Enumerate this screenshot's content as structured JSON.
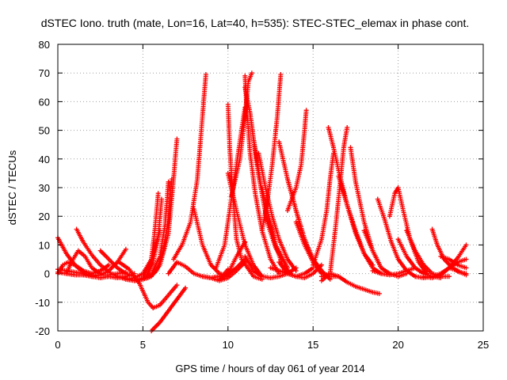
{
  "chart_data": {
    "type": "scatter",
    "title": "dSTEC Iono. truth (mate, Lon=16, Lat=40, h=535): STEC-STEC_elemax in phase cont.",
    "xlabel": "GPS time / hours of day 061 of year 2014",
    "ylabel": "dSTEC  / TECUs",
    "xlim": [
      0,
      25
    ],
    "ylim": [
      -20,
      80
    ],
    "xticks": [
      0,
      5,
      10,
      15,
      20,
      25
    ],
    "yticks": [
      -20,
      -10,
      0,
      10,
      20,
      30,
      40,
      50,
      60,
      70,
      80
    ],
    "x_tick_labels": [
      "0",
      "5",
      "10",
      "15",
      "20",
      "25"
    ],
    "y_tick_labels": [
      "-20",
      "-10",
      "0",
      "10",
      "20",
      "30",
      "40",
      "50",
      "60",
      "70",
      "80"
    ],
    "grid": true,
    "marker": "+",
    "color": "#ff0000",
    "series": [
      {
        "x": [
          0.0,
          0.5,
          1.0,
          1.5,
          2.0,
          2.5,
          3.0
        ],
        "y": [
          12.5,
          7,
          3,
          0.5,
          -1,
          -1.5,
          -1
        ]
      },
      {
        "x": [
          0.0,
          0.3,
          0.6,
          1.0,
          1.5,
          2.0
        ],
        "y": [
          0,
          3,
          4,
          3,
          1,
          0
        ]
      },
      {
        "x": [
          0.0,
          0.5,
          1.0,
          1.5,
          2.0,
          2.5,
          3.0
        ],
        "y": [
          0.5,
          0,
          -0.5,
          -0.5,
          0,
          1,
          3
        ]
      },
      {
        "x": [
          0.0,
          0.5,
          1.0,
          1.5,
          2.0,
          2.5,
          3.0,
          3.5,
          4.0
        ],
        "y": [
          1.5,
          1,
          0.5,
          0,
          -0.5,
          -0.5,
          -0.5,
          0,
          0.5
        ]
      },
      {
        "x": [
          0.5,
          0.8,
          1.2,
          1.6,
          2.0,
          2.5
        ],
        "y": [
          0,
          4,
          8,
          6,
          2,
          0
        ]
      },
      {
        "x": [
          1.1,
          1.5,
          2.0,
          2.5,
          3.0,
          3.5,
          4.0
        ],
        "y": [
          15.5,
          11,
          6.5,
          3,
          0.5,
          -1,
          -1.5
        ]
      },
      {
        "x": [
          1.5,
          2.0,
          2.5,
          3.0,
          3.5,
          4.0
        ],
        "y": [
          -0.5,
          -1,
          -0.5,
          1,
          4,
          8.5
        ]
      },
      {
        "x": [
          2.5,
          3.0,
          3.5,
          4.0,
          4.5
        ],
        "y": [
          8,
          5,
          2,
          0,
          -1
        ]
      },
      {
        "x": [
          3.0,
          3.5,
          4.0,
          4.5
        ],
        "y": [
          -1,
          -1.5,
          -1,
          0
        ]
      },
      {
        "x": [
          3.6,
          4.2,
          4.8,
          5.3,
          5.6
        ],
        "y": [
          4,
          1.5,
          -3.5,
          -10,
          -12
        ]
      },
      {
        "x": [
          3.5,
          4.0,
          4.5,
          5.0,
          5.5,
          6.0
        ],
        "y": [
          -1,
          -2,
          -1.5,
          0,
          5,
          15
        ]
      },
      {
        "x": [
          5.6,
          6.0,
          6.5,
          7.0
        ],
        "y": [
          -12,
          -11,
          -7.5,
          -4
        ]
      },
      {
        "x": [
          4.0,
          4.5,
          5.0,
          5.5,
          5.7,
          5.9
        ],
        "y": [
          -2,
          -2.5,
          -1.5,
          5,
          15,
          28
        ]
      },
      {
        "x": [
          4.2,
          4.7,
          5.2,
          5.6,
          5.9,
          6.1
        ],
        "y": [
          -2,
          -2.5,
          -1,
          4,
          13,
          26
        ]
      },
      {
        "x": [
          4.5,
          5.0,
          5.5,
          6.0,
          6.3,
          6.5
        ],
        "y": [
          -2.5,
          -2,
          0,
          6,
          17,
          32
        ]
      },
      {
        "x": [
          4.8,
          5.3,
          5.8,
          6.2,
          6.5,
          6.7
        ],
        "y": [
          -2,
          -1.5,
          1,
          8,
          19,
          33
        ]
      },
      {
        "x": [
          5.0,
          5.5,
          6.0,
          6.5,
          6.8,
          7.0
        ],
        "y": [
          -2,
          -1,
          3,
          14,
          33,
          47
        ]
      },
      {
        "x": [
          5.5,
          6.0,
          6.5,
          7.0,
          7.5
        ],
        "y": [
          -20,
          -17,
          -13,
          -9,
          -5
        ]
      },
      {
        "x": [
          6.5,
          7.0,
          7.5,
          8.0,
          8.5,
          9.0,
          9.5,
          10.0,
          10.5,
          11.0
        ],
        "y": [
          0,
          4,
          2.5,
          0,
          -1,
          -1.5,
          -1,
          0,
          2,
          5
        ]
      },
      {
        "x": [
          6.8,
          7.3,
          7.8,
          8.2,
          8.5,
          8.7
        ],
        "y": [
          5,
          10,
          18,
          33,
          55,
          69.5
        ]
      },
      {
        "x": [
          8.0,
          8.5,
          9.0,
          9.5,
          10.0
        ],
        "y": [
          22.5,
          10,
          3,
          0,
          -1
        ]
      },
      {
        "x": [
          8.5,
          9.0,
          9.5,
          9.8,
          10.0
        ],
        "y": [
          -1,
          -1.5,
          -1,
          0,
          1.5
        ]
      },
      {
        "x": [
          9.0,
          9.5,
          10.0,
          10.5,
          11.0
        ],
        "y": [
          -1.5,
          -2.5,
          -1.5,
          1,
          4
        ]
      },
      {
        "x": [
          9.3,
          9.8,
          10.2,
          10.6,
          11.0
        ],
        "y": [
          2,
          10,
          26,
          42,
          58
        ]
      },
      {
        "x": [
          9.5,
          10.0,
          10.5,
          11.0
        ],
        "y": [
          -2,
          0,
          6,
          11
        ]
      },
      {
        "x": [
          10.0,
          10.1,
          10.3,
          10.5,
          10.8,
          11.5,
          12.0
        ],
        "y": [
          59,
          44,
          26,
          12,
          5,
          -1,
          -2
        ]
      },
      {
        "x": [
          10.0,
          10.5,
          11.0,
          11.5,
          12.0
        ],
        "y": [
          35,
          22,
          10,
          3,
          -1
        ]
      },
      {
        "x": [
          10.2,
          10.7,
          11.0,
          11.2,
          11.4
        ],
        "y": [
          27,
          40,
          55,
          67,
          70
        ]
      },
      {
        "x": [
          11.0,
          11.1,
          11.3,
          11.6,
          12.0,
          12.5,
          13.0
        ],
        "y": [
          69,
          58,
          42,
          28,
          15,
          5,
          0
        ]
      },
      {
        "x": [
          11.0,
          11.3,
          11.5,
          11.8,
          12.2,
          12.8,
          13.5
        ],
        "y": [
          65,
          56,
          47,
          34,
          22,
          10,
          2
        ]
      },
      {
        "x": [
          11.5,
          11.8,
          12.0,
          12.3,
          12.8,
          13.5
        ],
        "y": [
          47,
          36,
          28,
          18,
          9,
          2
        ]
      },
      {
        "x": [
          11.0,
          11.5,
          12.0,
          12.5,
          13.0,
          13.5,
          14.0
        ],
        "y": [
          6,
          1,
          -1,
          -1.5,
          -1,
          0,
          2
        ]
      },
      {
        "x": [
          11.8,
          12.2,
          12.6,
          13.0,
          13.5,
          14.0
        ],
        "y": [
          42,
          30,
          20,
          12,
          5,
          1
        ]
      },
      {
        "x": [
          12.0,
          12.4,
          12.8,
          13.2,
          13.7
        ],
        "y": [
          30,
          20,
          10,
          3,
          0
        ]
      },
      {
        "x": [
          12.0,
          12.3,
          12.6,
          12.9,
          13.1
        ],
        "y": [
          15,
          25,
          38,
          55,
          69.5
        ]
      },
      {
        "x": [
          12.5,
          13.0,
          13.5,
          14.0,
          14.5,
          15.0
        ],
        "y": [
          2,
          1,
          0,
          -1,
          0,
          2
        ]
      },
      {
        "x": [
          13.0,
          13.5,
          14.0,
          14.5,
          15.0,
          15.5
        ],
        "y": [
          46,
          33,
          22,
          12,
          5,
          1
        ]
      },
      {
        "x": [
          13.5,
          14.0,
          14.5,
          15.0,
          15.5,
          16.0
        ],
        "y": [
          33,
          22,
          12,
          5,
          1,
          -2
        ]
      },
      {
        "x": [
          13.5,
          14.0,
          14.3,
          14.5,
          14.6
        ],
        "y": [
          22,
          30,
          38,
          50,
          57
        ]
      },
      {
        "x": [
          13.0,
          13.5,
          14.0,
          14.5,
          15.0,
          15.5
        ],
        "y": [
          4,
          0,
          -1,
          -1.5,
          0,
          3
        ]
      },
      {
        "x": [
          14.0,
          14.5,
          15.0,
          15.5,
          16.0,
          16.5
        ],
        "y": [
          18,
          10,
          4,
          0,
          -1,
          -1
        ]
      },
      {
        "x": [
          15.0,
          15.5,
          15.8,
          16.0,
          16.2
        ],
        "y": [
          3,
          12,
          22,
          33,
          42
        ]
      },
      {
        "x": [
          15.5,
          16.0,
          16.3,
          16.6,
          16.8,
          17.0
        ],
        "y": [
          -2.5,
          0,
          15,
          32,
          44,
          51
        ]
      },
      {
        "x": [
          15.5,
          16.0,
          16.5,
          17.0,
          17.5,
          18.0,
          18.5,
          18.9
        ],
        "y": [
          -1,
          0,
          -1,
          -3,
          -4.5,
          -5.5,
          -6.5,
          -7
        ]
      },
      {
        "x": [
          15.9,
          16.2,
          16.5,
          17.0,
          17.5,
          18.0,
          18.5
        ],
        "y": [
          51,
          44,
          36,
          24,
          14,
          7,
          3
        ]
      },
      {
        "x": [
          16.5,
          17.0,
          17.5,
          18.0,
          18.5,
          19.0
        ],
        "y": [
          34,
          24,
          15,
          7,
          2,
          0
        ]
      },
      {
        "x": [
          17.2,
          17.5,
          18.0,
          18.5,
          19.0
        ],
        "y": [
          44,
          32,
          18,
          8,
          2
        ]
      },
      {
        "x": [
          18.0,
          18.5,
          19.0,
          19.5,
          20.0,
          20.5
        ],
        "y": [
          15,
          8,
          2,
          0,
          -1,
          0
        ]
      },
      {
        "x": [
          18.5,
          19.0,
          19.5,
          20.0,
          20.5,
          21.0
        ],
        "y": [
          1,
          0,
          -0.5,
          0,
          1,
          2
        ]
      },
      {
        "x": [
          18.8,
          19.2,
          19.6,
          20.0,
          20.5,
          21.0
        ],
        "y": [
          26,
          19,
          11,
          5,
          1,
          -1
        ]
      },
      {
        "x": [
          19.5,
          19.8,
          20.0,
          20.3,
          20.7,
          21.2,
          21.7
        ],
        "y": [
          20,
          28,
          30,
          22,
          12,
          4,
          0
        ]
      },
      {
        "x": [
          20.0,
          20.5,
          21.0,
          21.5,
          22.0,
          22.5
        ],
        "y": [
          12,
          6,
          2,
          0,
          -1,
          -1.5
        ]
      },
      {
        "x": [
          20.5,
          21.0,
          21.5,
          22.0,
          22.5,
          23.0
        ],
        "y": [
          15,
          8,
          3,
          0,
          -1,
          -1
        ]
      },
      {
        "x": [
          21.0,
          21.5,
          22.0,
          22.5,
          23.0,
          23.5,
          24.0
        ],
        "y": [
          -1,
          -1.5,
          -1,
          0,
          2,
          4,
          5
        ]
      },
      {
        "x": [
          21.5,
          22.0,
          22.5,
          23.0,
          23.5,
          24.0
        ],
        "y": [
          -1,
          -1.5,
          -0.5,
          2,
          5.5,
          10
        ]
      },
      {
        "x": [
          22.0,
          22.3,
          22.7,
          23.2,
          23.6,
          24.0
        ],
        "y": [
          15.5,
          10,
          5,
          2,
          0.5,
          0
        ]
      },
      {
        "x": [
          22.5,
          23.0,
          23.5,
          24.0
        ],
        "y": [
          6,
          5,
          3,
          2
        ]
      },
      {
        "x": [
          23.0,
          23.5,
          24.0
        ],
        "y": [
          2,
          1,
          -0.5
        ]
      }
    ]
  }
}
